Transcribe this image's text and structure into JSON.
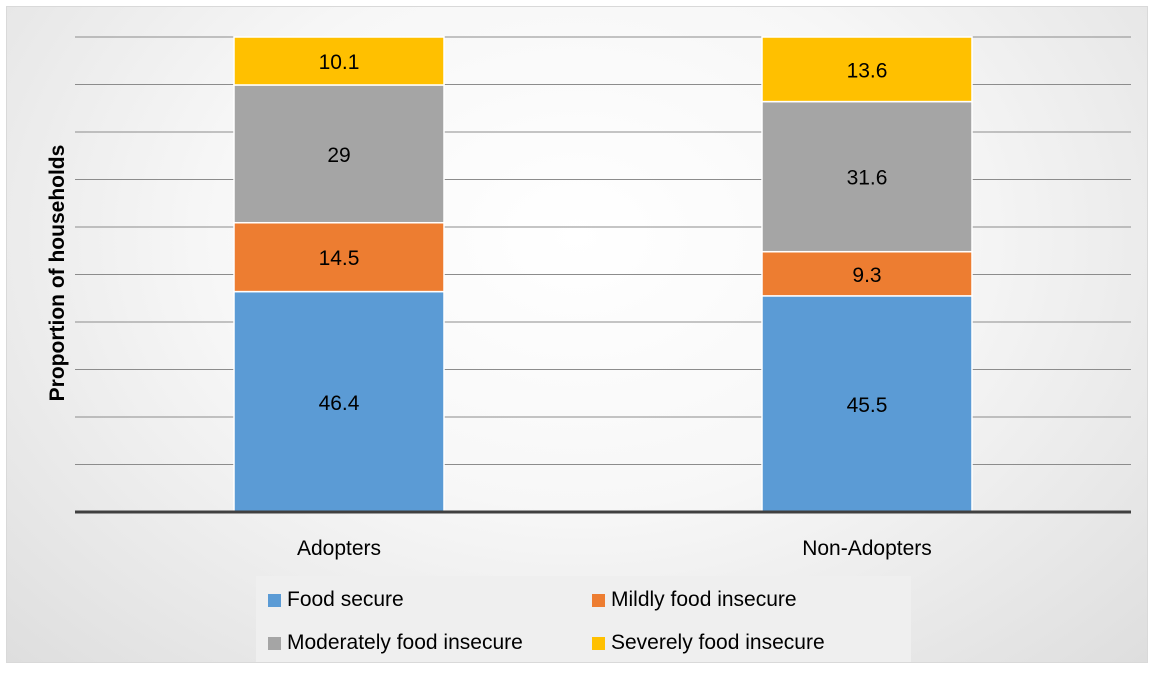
{
  "chart_data": {
    "type": "bar",
    "stacked": true,
    "title": "",
    "xlabel": "",
    "ylabel": "Proportion of households",
    "categories": [
      "Adopters",
      "Non-Adopters"
    ],
    "series": [
      {
        "name": "Food secure",
        "color": "#5b9bd5",
        "values": [
          46.4,
          45.5
        ]
      },
      {
        "name": "Mildly food insecure",
        "color": "#ed7d31",
        "values": [
          14.5,
          9.3
        ]
      },
      {
        "name": "Moderately food insecure",
        "color": "#a5a5a5",
        "values": [
          29,
          31.6
        ]
      },
      {
        "name": "Severely food insecure",
        "color": "#ffc000",
        "values": [
          10.1,
          13.6
        ]
      }
    ],
    "ylim": [
      0,
      100
    ],
    "gridlines": true,
    "y_tick_labels_shown": false,
    "legend_position": "bottom"
  }
}
